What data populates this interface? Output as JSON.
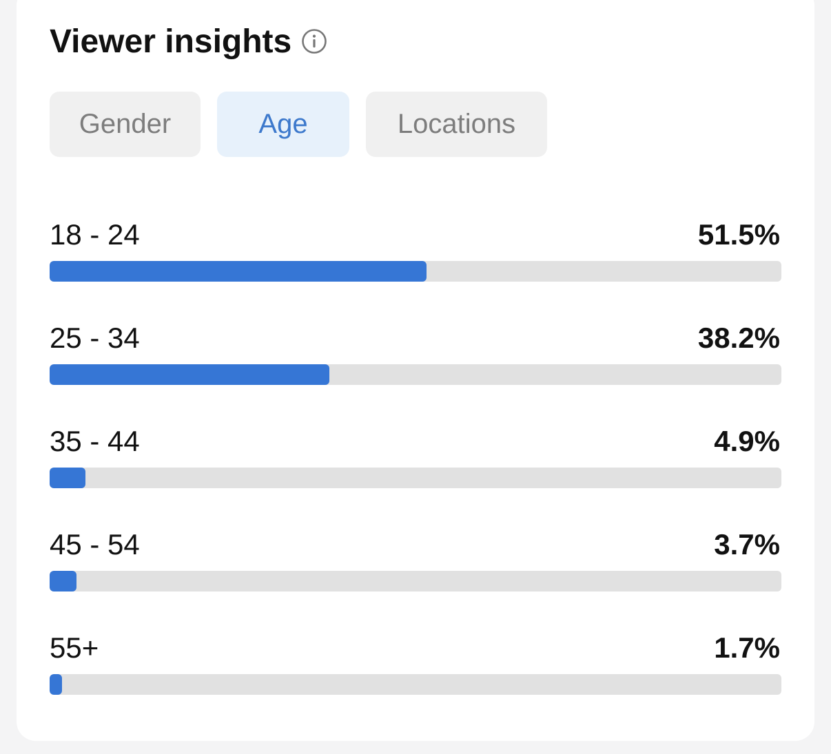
{
  "header": {
    "title": "Viewer insights",
    "info_icon": "info-circle-icon"
  },
  "tabs": [
    {
      "label": "Gender",
      "active": false
    },
    {
      "label": "Age",
      "active": true
    },
    {
      "label": "Locations",
      "active": false
    }
  ],
  "colors": {
    "accent": "#3676d5",
    "active_tab_bg": "#e7f1fb",
    "track": "#e1e1e1"
  },
  "age_breakdown": [
    {
      "label": "18 - 24",
      "value": "51.5%",
      "fraction": 0.515
    },
    {
      "label": "25 - 34",
      "value": "38.2%",
      "fraction": 0.382
    },
    {
      "label": "35 - 44",
      "value": "4.9%",
      "fraction": 0.049
    },
    {
      "label": "45 - 54",
      "value": "3.7%",
      "fraction": 0.037
    },
    {
      "label": "55+",
      "value": "1.7%",
      "fraction": 0.017
    }
  ]
}
